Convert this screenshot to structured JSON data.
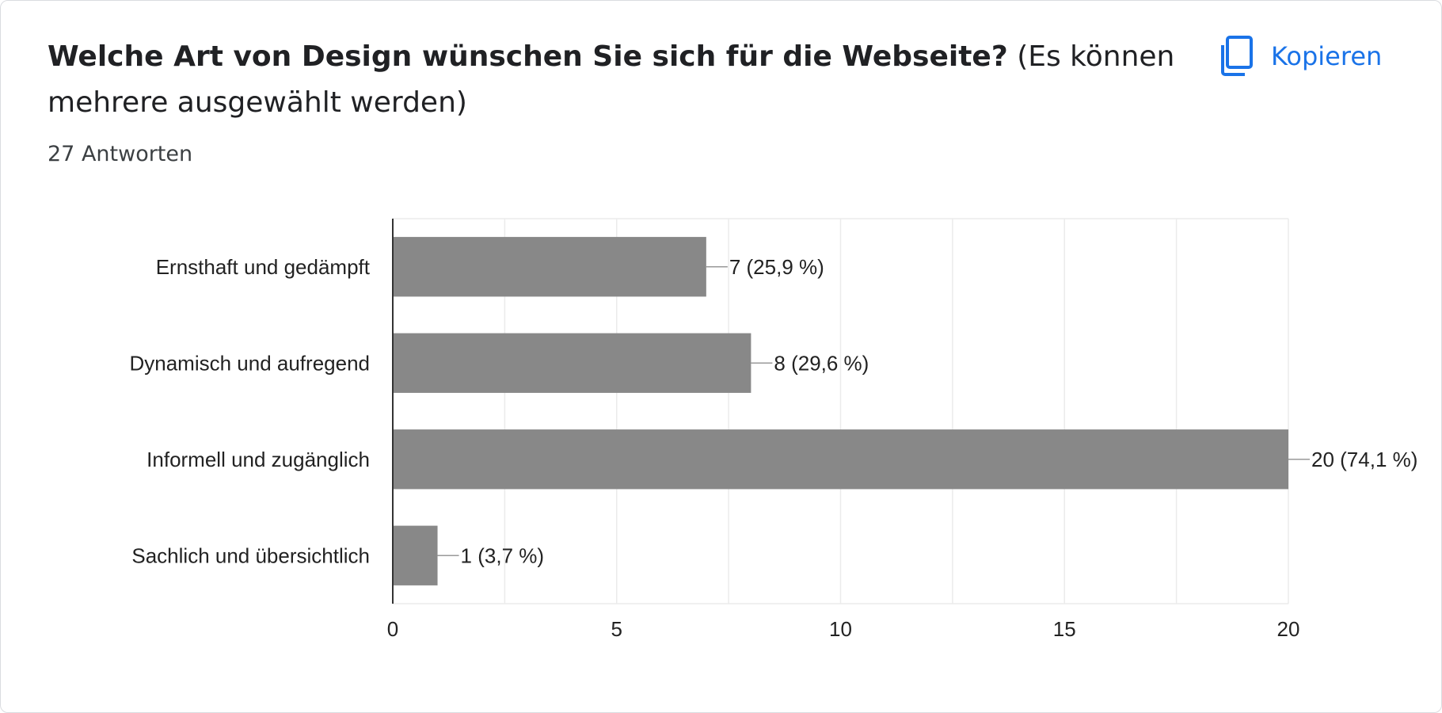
{
  "question": {
    "title_bold": "Welche Art von Design wünschen Sie sich für die Webseite?",
    "title_rest": "(Es können mehrere ausgewählt werden)",
    "responses": "27 Antworten"
  },
  "copy_button": {
    "label": "Kopieren",
    "icon": "copy-icon"
  },
  "colors": {
    "bar": "#888888",
    "accent": "#1a73e8",
    "grid": "#ebebeb",
    "axis": "#333333"
  },
  "chart_data": {
    "type": "bar",
    "orientation": "horizontal",
    "categories": [
      "Ernsthaft und gedämpft",
      "Dynamisch und aufregend",
      "Informell und zugänglich",
      "Sachlich und übersichtlich"
    ],
    "values": [
      7,
      8,
      20,
      1
    ],
    "data_labels": [
      "7 (25,9 %)",
      "8 (29,6 %)",
      "20 (74,1 %)",
      "1 (3,7 %)"
    ],
    "xlim": [
      0,
      20
    ],
    "xticks": [
      "0",
      "5",
      "10",
      "15",
      "20"
    ],
    "grid": true,
    "title": "",
    "xlabel": "",
    "ylabel": ""
  }
}
